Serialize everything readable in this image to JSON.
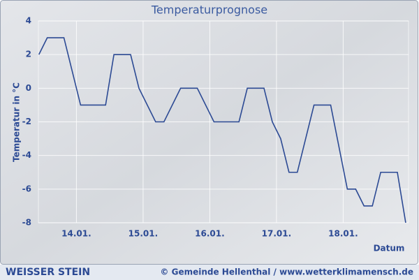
{
  "chart_data": {
    "type": "line",
    "title": "Temperaturprognose",
    "y_label": "Temperatur in °C",
    "x_label": "Datum",
    "x": [
      13.4375,
      13.5625,
      13.8125,
      14.0625,
      14.4375,
      14.5625,
      14.8125,
      14.9375,
      15.1875,
      15.3125,
      15.5625,
      15.8125,
      16.0625,
      16.4375,
      16.5625,
      16.8125,
      16.9375,
      17.0625,
      17.1875,
      17.3125,
      17.5625,
      17.8125,
      18.0625,
      18.1875,
      18.3125,
      18.4375,
      18.5625,
      18.8125,
      18.9375
    ],
    "series": [
      {
        "color": "#2c4a94",
        "values": [
          2,
          3,
          3,
          -1,
          -1,
          2,
          2,
          0,
          -2,
          -2,
          0,
          0,
          -2,
          -2,
          0,
          0,
          -2,
          -3,
          -5,
          -5,
          -1,
          -1,
          -6,
          -6,
          -7,
          -7,
          -5,
          -5,
          -8
        ]
      }
    ],
    "xlim": [
      13.43,
      18.98
    ],
    "xticks": [
      {
        "value": 14,
        "label": "14.01."
      },
      {
        "value": 15,
        "label": "15.01."
      },
      {
        "value": 16,
        "label": "16.01."
      },
      {
        "value": 17,
        "label": "17.01."
      },
      {
        "value": 18,
        "label": "18.01."
      }
    ],
    "ylim": [
      -8,
      4
    ],
    "yticks": [
      -8,
      -6,
      -4,
      -2,
      0,
      2,
      4
    ],
    "grid": true
  },
  "footer": {
    "station": "WEISSER STEIN",
    "credit": "© Gemeinde Hellenthal / www.wetterklimamensch.de"
  }
}
